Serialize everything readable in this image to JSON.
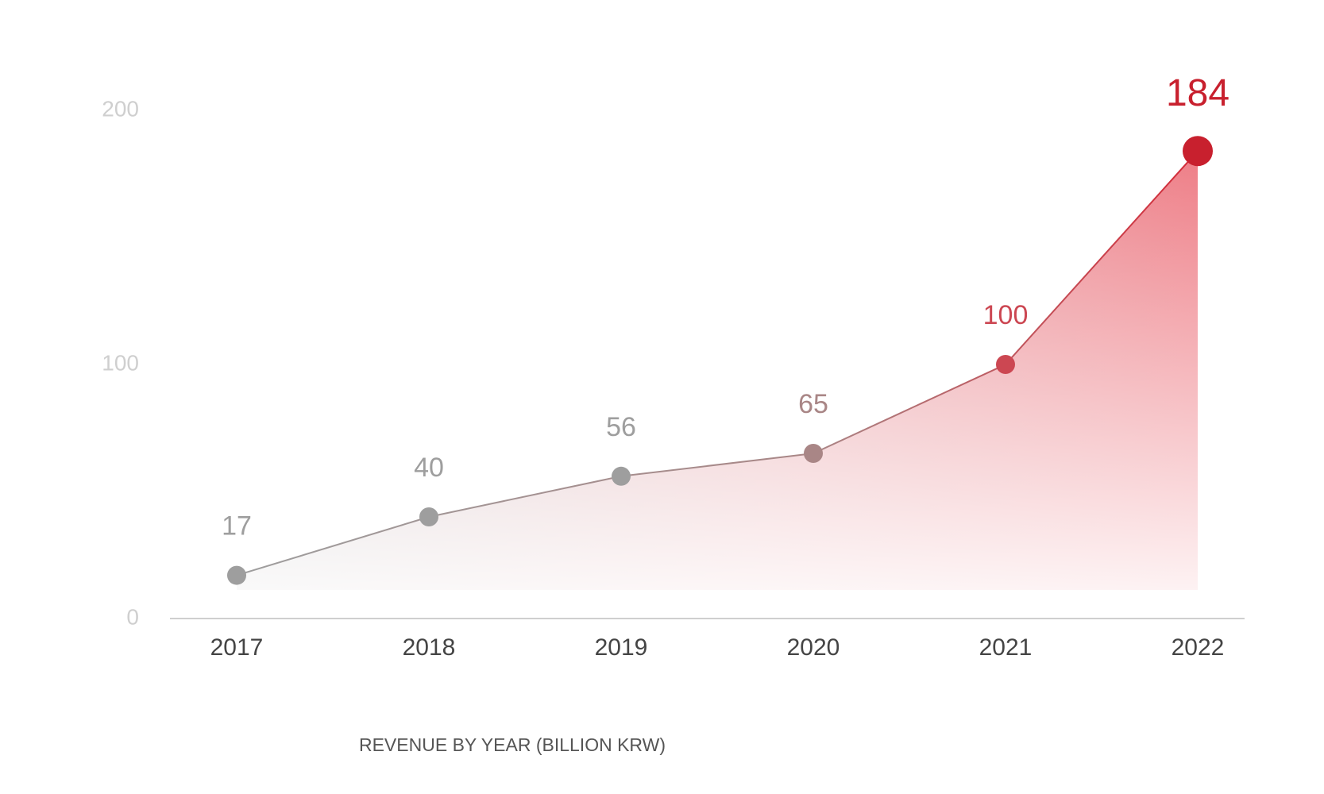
{
  "chart_data": {
    "type": "area",
    "title": "REVENUE BY YEAR (BILLION KRW)",
    "categories": [
      "2017",
      "2018",
      "2019",
      "2020",
      "2021",
      "2022"
    ],
    "values": [
      17,
      40,
      56,
      65,
      100,
      184
    ],
    "colors": [
      "#9e9e9e",
      "#9e9e9e",
      "#9e9e9e",
      "#a98686",
      "#cc4752",
      "#c8202e"
    ],
    "ylim": [
      0,
      200
    ],
    "yticks": [
      0,
      100,
      200
    ],
    "grid": false
  }
}
